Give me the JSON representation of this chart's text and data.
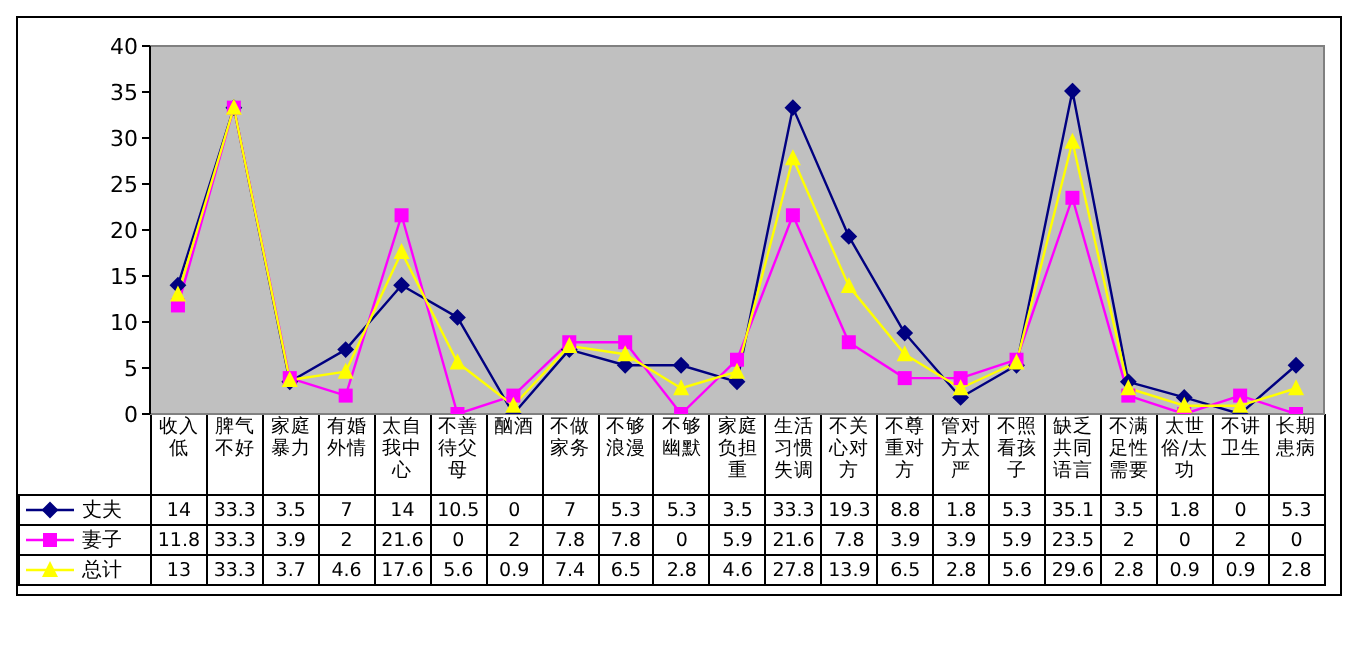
{
  "chart_data": {
    "type": "line",
    "categories": [
      "收入低",
      "脾气不好",
      "家庭暴力",
      "有婚外情",
      "太自我中心",
      "不善待父母",
      "酗酒",
      "不做家务",
      "不够浪漫",
      "不够幽默",
      "家庭负担重",
      "生活习惯失调",
      "不关心对方",
      "不尊重对方",
      "管对方太严",
      "不照看孩子",
      "缺乏共同语言",
      "不满足性需要",
      "太世俗/太功",
      "不讲卫生",
      "长期患病"
    ],
    "series": [
      {
        "name": "丈夫",
        "color": "#000080",
        "marker": "diamond",
        "values": [
          14,
          33.3,
          3.5,
          7,
          14,
          10.5,
          0,
          7,
          5.3,
          5.3,
          3.5,
          33.3,
          19.3,
          8.8,
          1.8,
          5.3,
          35.1,
          3.5,
          1.8,
          0,
          5.3
        ]
      },
      {
        "name": "妻子",
        "color": "#ff00ff",
        "marker": "square",
        "values": [
          11.8,
          33.3,
          3.9,
          2,
          21.6,
          0,
          2,
          7.8,
          7.8,
          0,
          5.9,
          21.6,
          7.8,
          3.9,
          3.9,
          5.9,
          23.5,
          2,
          0,
          2,
          0
        ]
      },
      {
        "name": "总计",
        "color": "#ffff00",
        "marker": "triangle",
        "values": [
          13,
          33.3,
          3.7,
          4.6,
          17.6,
          5.6,
          0.9,
          7.4,
          6.5,
          2.8,
          4.6,
          27.8,
          13.9,
          6.5,
          2.8,
          5.6,
          29.6,
          2.8,
          0.9,
          0.9,
          2.8
        ]
      }
    ],
    "ylim": [
      0,
      40
    ],
    "yticks": [
      0,
      5,
      10,
      15,
      20,
      25,
      30,
      35,
      40
    ],
    "legend": "bottom left",
    "data_labels": true
  }
}
